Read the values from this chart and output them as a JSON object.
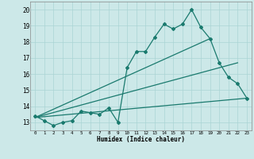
{
  "title": "",
  "xlabel": "Humidex (Indice chaleur)",
  "ylabel": "",
  "x_ticks": [
    0,
    1,
    2,
    3,
    4,
    5,
    6,
    7,
    8,
    9,
    10,
    11,
    12,
    13,
    14,
    15,
    16,
    17,
    18,
    19,
    20,
    21,
    22,
    23
  ],
  "ylim": [
    12.5,
    20.5
  ],
  "xlim": [
    -0.5,
    23.5
  ],
  "background_color": "#cce8e8",
  "grid_color": "#aad4d4",
  "line_color": "#1a7a6e",
  "line1_x": [
    0,
    1,
    2,
    3,
    4,
    5,
    6,
    7,
    8,
    9,
    10,
    11,
    12,
    13,
    14,
    15,
    16,
    17,
    18,
    19,
    20,
    21,
    22,
    23
  ],
  "line1_y": [
    13.4,
    13.1,
    12.8,
    13.0,
    13.1,
    13.7,
    13.6,
    13.5,
    13.9,
    13.0,
    16.4,
    17.4,
    17.4,
    18.3,
    19.1,
    18.8,
    19.1,
    20.0,
    18.9,
    18.2,
    16.7,
    15.8,
    15.4,
    14.5
  ],
  "line2_x": [
    0,
    19
  ],
  "line2_y": [
    13.3,
    18.2
  ],
  "line3_x": [
    0,
    22
  ],
  "line3_y": [
    13.3,
    16.7
  ],
  "line4_x": [
    0,
    23
  ],
  "line4_y": [
    13.3,
    14.5
  ],
  "yticks": [
    13,
    14,
    15,
    16,
    17,
    18,
    19,
    20
  ]
}
